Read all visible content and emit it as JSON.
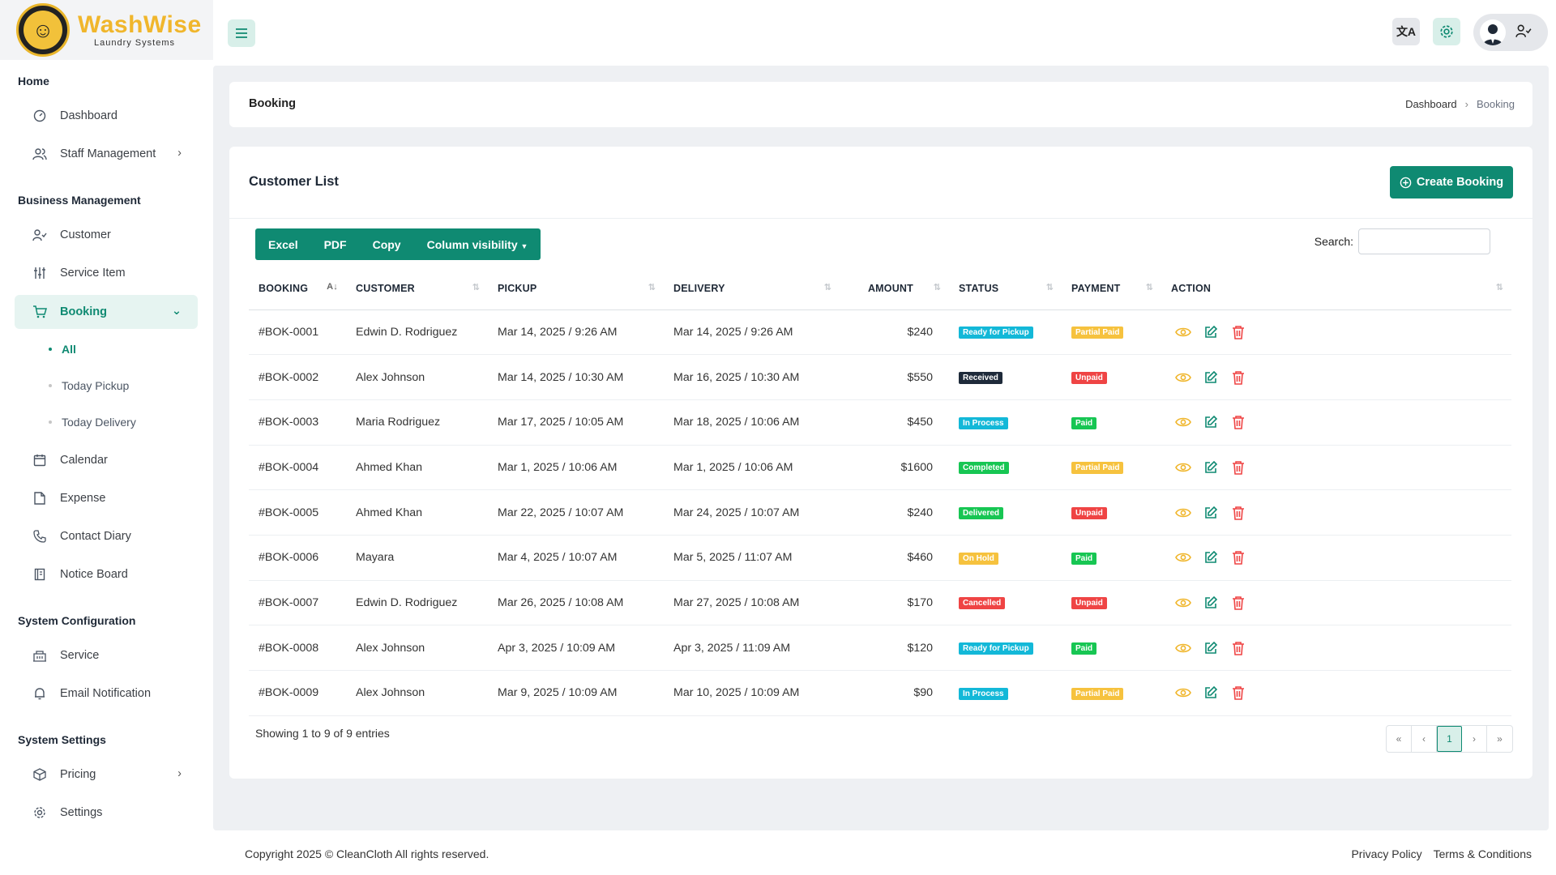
{
  "brand": {
    "name": "WashWise",
    "tagline": "Laundry Systems"
  },
  "sidebar": {
    "sections": {
      "home": "Home",
      "business": "Business Management",
      "sysconfig": "System Configuration",
      "syssettings": "System Settings"
    },
    "items": {
      "dashboard": "Dashboard",
      "staff": "Staff Management",
      "customer": "Customer",
      "service_item": "Service Item",
      "booking": "Booking",
      "calendar": "Calendar",
      "expense": "Expense",
      "contact_diary": "Contact Diary",
      "notice_board": "Notice Board",
      "service": "Service",
      "email_notification": "Email Notification",
      "pricing": "Pricing",
      "settings": "Settings"
    },
    "booking_sub": {
      "all": "All",
      "today_pickup": "Today Pickup",
      "today_delivery": "Today Delivery"
    }
  },
  "page": {
    "title": "Booking",
    "breadcrumb": {
      "root": "Dashboard",
      "current": "Booking"
    }
  },
  "list": {
    "title": "Customer List",
    "create_label": "Create Booking",
    "export": {
      "excel": "Excel",
      "pdf": "PDF",
      "copy": "Copy",
      "colvis": "Column visibility"
    },
    "search_label": "Search:",
    "search_value": "",
    "columns": {
      "booking": "BOOKING",
      "customer": "CUSTOMER",
      "pickup": "PICKUP",
      "delivery": "DELIVERY",
      "amount": "AMOUNT",
      "status": "STATUS",
      "payment": "PAYMENT",
      "action": "ACTION"
    },
    "rows": [
      {
        "id": "#BOK-0001",
        "customer": "Edwin D. Rodriguez",
        "pickup": "Mar 14, 2025 / 9:26 AM",
        "delivery": "Mar 14, 2025 / 9:26 AM",
        "amount": "$240",
        "status": "Ready for Pickup",
        "payment": "Partial Paid"
      },
      {
        "id": "#BOK-0002",
        "customer": "Alex Johnson",
        "pickup": "Mar 14, 2025 / 10:30 AM",
        "delivery": "Mar 16, 2025 / 10:30 AM",
        "amount": "$550",
        "status": "Received",
        "payment": "Unpaid"
      },
      {
        "id": "#BOK-0003",
        "customer": "Maria Rodriguez",
        "pickup": "Mar 17, 2025 / 10:05 AM",
        "delivery": "Mar 18, 2025 / 10:06 AM",
        "amount": "$450",
        "status": "In Process",
        "payment": "Paid"
      },
      {
        "id": "#BOK-0004",
        "customer": "Ahmed Khan",
        "pickup": "Mar 1, 2025 / 10:06 AM",
        "delivery": "Mar 1, 2025 / 10:06 AM",
        "amount": "$1600",
        "status": "Completed",
        "payment": "Partial Paid"
      },
      {
        "id": "#BOK-0005",
        "customer": "Ahmed Khan",
        "pickup": "Mar 22, 2025 / 10:07 AM",
        "delivery": "Mar 24, 2025 / 10:07 AM",
        "amount": "$240",
        "status": "Delivered",
        "payment": "Unpaid"
      },
      {
        "id": "#BOK-0006",
        "customer": "Mayara",
        "pickup": "Mar 4, 2025 / 10:07 AM",
        "delivery": "Mar 5, 2025 / 11:07 AM",
        "amount": "$460",
        "status": "On Hold",
        "payment": "Paid"
      },
      {
        "id": "#BOK-0007",
        "customer": "Edwin D. Rodriguez",
        "pickup": "Mar 26, 2025 / 10:08 AM",
        "delivery": "Mar 27, 2025 / 10:08 AM",
        "amount": "$170",
        "status": "Cancelled",
        "payment": "Unpaid"
      },
      {
        "id": "#BOK-0008",
        "customer": "Alex Johnson",
        "pickup": "Apr 3, 2025 / 10:09 AM",
        "delivery": "Apr 3, 2025 / 11:09 AM",
        "amount": "$120",
        "status": "Ready for Pickup",
        "payment": "Paid"
      },
      {
        "id": "#BOK-0009",
        "customer": "Alex Johnson",
        "pickup": "Mar 9, 2025 / 10:09 AM",
        "delivery": "Mar 10, 2025 / 10:09 AM",
        "amount": "$90",
        "status": "In Process",
        "payment": "Partial Paid"
      }
    ],
    "showing": "Showing 1 to 9 of 9 entries",
    "pager": {
      "first": "«",
      "prev": "‹",
      "current": "1",
      "next": "›",
      "last": "»"
    }
  },
  "badge_colors": {
    "Ready for Pickup": "#13b8d8",
    "Received": "#1e2a3a",
    "In Process": "#13b8d8",
    "Completed": "#17c653",
    "Delivered": "#17c653",
    "On Hold": "#f6c23e",
    "Cancelled": "#ef4444",
    "Partial Paid": "#f6c23e",
    "Unpaid": "#ef4444",
    "Paid": "#17c653"
  },
  "colors": {
    "accent": "#0f8a72",
    "view": "#f0b62c",
    "edit": "#0f8a72",
    "delete": "#ef4444"
  },
  "footer": {
    "copyright": "Copyright 2025 © CleanCloth All rights reserved.",
    "privacy": "Privacy Policy",
    "terms": "Terms & Conditions"
  }
}
